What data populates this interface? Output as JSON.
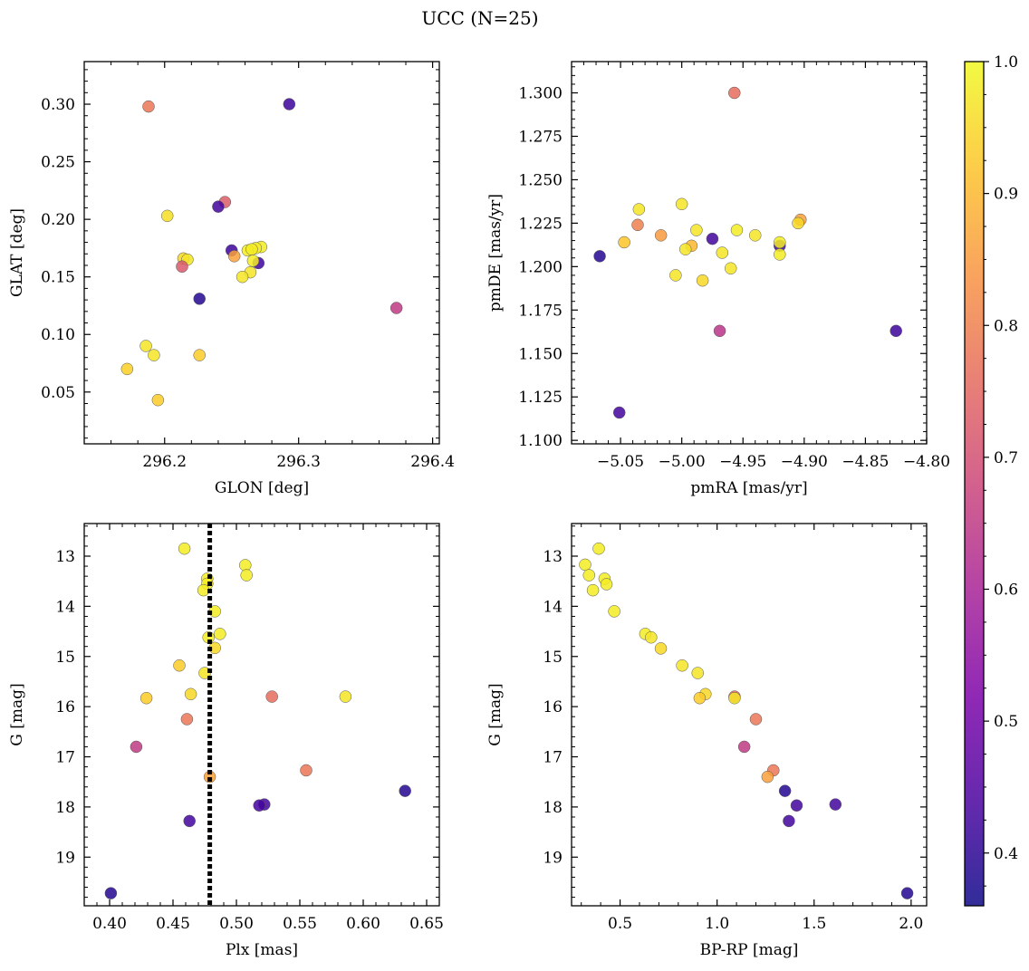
{
  "figure": {
    "title": "UCC (N=25)"
  },
  "colorbar": {
    "ticks": [
      "0.4",
      "0.5",
      "0.6",
      "0.7",
      "0.8",
      "0.9",
      "1.0"
    ],
    "range": [
      0.36,
      1.0
    ]
  },
  "chart_data": [
    {
      "type": "scatter",
      "panel": "top-left",
      "xlabel": "GLON [deg]",
      "ylabel": "GLAT [deg]",
      "xlim": [
        296.14,
        296.405
      ],
      "ylim": [
        0.005,
        0.337
      ],
      "xticks": [
        "296.2",
        "296.3",
        "296.4"
      ],
      "yticks": [
        "0.05",
        "0.10",
        "0.15",
        "0.20",
        "0.25",
        "0.30"
      ],
      "points": [
        {
          "x": 296.188,
          "y": 0.298,
          "c": 0.78
        },
        {
          "x": 296.293,
          "y": 0.3,
          "c": 0.42
        },
        {
          "x": 296.245,
          "y": 0.215,
          "c": 0.73
        },
        {
          "x": 296.24,
          "y": 0.211,
          "c": 0.43
        },
        {
          "x": 296.202,
          "y": 0.203,
          "c": 0.96
        },
        {
          "x": 296.272,
          "y": 0.176,
          "c": 0.98
        },
        {
          "x": 296.268,
          "y": 0.175,
          "c": 0.98
        },
        {
          "x": 296.262,
          "y": 0.173,
          "c": 0.98
        },
        {
          "x": 296.265,
          "y": 0.174,
          "c": 0.98
        },
        {
          "x": 296.25,
          "y": 0.173,
          "c": 0.42
        },
        {
          "x": 296.252,
          "y": 0.168,
          "c": 0.86
        },
        {
          "x": 296.214,
          "y": 0.166,
          "c": 0.95
        },
        {
          "x": 296.217,
          "y": 0.165,
          "c": 0.97
        },
        {
          "x": 296.27,
          "y": 0.162,
          "c": 0.42
        },
        {
          "x": 296.266,
          "y": 0.164,
          "c": 0.98
        },
        {
          "x": 296.213,
          "y": 0.159,
          "c": 0.72
        },
        {
          "x": 296.264,
          "y": 0.154,
          "c": 0.97
        },
        {
          "x": 296.258,
          "y": 0.15,
          "c": 0.97
        },
        {
          "x": 296.226,
          "y": 0.131,
          "c": 0.39
        },
        {
          "x": 296.373,
          "y": 0.123,
          "c": 0.65
        },
        {
          "x": 296.186,
          "y": 0.09,
          "c": 0.97
        },
        {
          "x": 296.192,
          "y": 0.082,
          "c": 0.97
        },
        {
          "x": 296.226,
          "y": 0.082,
          "c": 0.93
        },
        {
          "x": 296.172,
          "y": 0.07,
          "c": 0.94
        },
        {
          "x": 296.195,
          "y": 0.043,
          "c": 0.93
        }
      ]
    },
    {
      "type": "scatter",
      "panel": "top-right",
      "xlabel": "pmRA [mas/yr]",
      "ylabel": "pmDE [mas/yr]",
      "xlim": [
        -5.09,
        -4.8
      ],
      "ylim": [
        1.098,
        1.318
      ],
      "xticks": [
        "−5.05",
        "−5.00",
        "−4.95",
        "−4.90",
        "−4.85",
        "−4.80"
      ],
      "yticks": [
        "1.100",
        "1.125",
        "1.150",
        "1.175",
        "1.200",
        "1.225",
        "1.250",
        "1.275",
        "1.300"
      ],
      "points": [
        {
          "x": -4.957,
          "y": 1.3,
          "c": 0.76
        },
        {
          "x": -5.0,
          "y": 1.236,
          "c": 0.97
        },
        {
          "x": -5.035,
          "y": 1.233,
          "c": 0.97
        },
        {
          "x": -4.903,
          "y": 1.227,
          "c": 0.86
        },
        {
          "x": -4.905,
          "y": 1.225,
          "c": 0.95
        },
        {
          "x": -5.036,
          "y": 1.224,
          "c": 0.8
        },
        {
          "x": -4.988,
          "y": 1.221,
          "c": 0.97
        },
        {
          "x": -4.955,
          "y": 1.221,
          "c": 0.98
        },
        {
          "x": -5.017,
          "y": 1.218,
          "c": 0.85
        },
        {
          "x": -4.94,
          "y": 1.218,
          "c": 0.97
        },
        {
          "x": -4.975,
          "y": 1.216,
          "c": 0.43
        },
        {
          "x": -4.92,
          "y": 1.212,
          "c": 0.42
        },
        {
          "x": -4.92,
          "y": 1.214,
          "c": 0.98
        },
        {
          "x": -5.047,
          "y": 1.214,
          "c": 0.92
        },
        {
          "x": -4.992,
          "y": 1.212,
          "c": 0.9
        },
        {
          "x": -4.997,
          "y": 1.21,
          "c": 0.97
        },
        {
          "x": -4.967,
          "y": 1.208,
          "c": 0.97
        },
        {
          "x": -4.92,
          "y": 1.207,
          "c": 0.98
        },
        {
          "x": -5.067,
          "y": 1.206,
          "c": 0.39
        },
        {
          "x": -4.96,
          "y": 1.199,
          "c": 0.97
        },
        {
          "x": -5.005,
          "y": 1.195,
          "c": 0.97
        },
        {
          "x": -4.983,
          "y": 1.192,
          "c": 0.95
        },
        {
          "x": -4.969,
          "y": 1.163,
          "c": 0.64
        },
        {
          "x": -4.825,
          "y": 1.163,
          "c": 0.42
        },
        {
          "x": -5.051,
          "y": 1.116,
          "c": 0.43
        }
      ]
    },
    {
      "type": "scatter",
      "panel": "bottom-left",
      "xlabel": "Plx [mas]",
      "ylabel": "G [mag]",
      "xlim": [
        0.38,
        0.66
      ],
      "ylim": [
        19.97,
        12.35
      ],
      "invert_y": true,
      "xticks": [
        "0.40",
        "0.45",
        "0.50",
        "0.55",
        "0.60",
        "0.65"
      ],
      "yticks": [
        "13",
        "14",
        "15",
        "16",
        "17",
        "18",
        "19"
      ],
      "vline": {
        "x": 0.479,
        "style": "dotted"
      },
      "points": [
        {
          "x": 0.459,
          "y": 12.85,
          "c": 0.98
        },
        {
          "x": 0.507,
          "y": 13.18,
          "c": 0.98
        },
        {
          "x": 0.508,
          "y": 13.38,
          "c": 0.98
        },
        {
          "x": 0.477,
          "y": 13.45,
          "c": 0.98
        },
        {
          "x": 0.477,
          "y": 13.55,
          "c": 0.98
        },
        {
          "x": 0.474,
          "y": 13.68,
          "c": 0.98
        },
        {
          "x": 0.483,
          "y": 14.1,
          "c": 0.98
        },
        {
          "x": 0.487,
          "y": 14.55,
          "c": 0.98
        },
        {
          "x": 0.478,
          "y": 14.62,
          "c": 0.98
        },
        {
          "x": 0.483,
          "y": 14.83,
          "c": 0.95
        },
        {
          "x": 0.455,
          "y": 15.18,
          "c": 0.93
        },
        {
          "x": 0.475,
          "y": 15.33,
          "c": 0.97
        },
        {
          "x": 0.464,
          "y": 15.75,
          "c": 0.95
        },
        {
          "x": 0.586,
          "y": 15.8,
          "c": 0.97
        },
        {
          "x": 0.429,
          "y": 15.83,
          "c": 0.93
        },
        {
          "x": 0.528,
          "y": 15.8,
          "c": 0.76
        },
        {
          "x": 0.461,
          "y": 16.25,
          "c": 0.78
        },
        {
          "x": 0.421,
          "y": 16.8,
          "c": 0.65
        },
        {
          "x": 0.555,
          "y": 17.27,
          "c": 0.78
        },
        {
          "x": 0.479,
          "y": 17.4,
          "c": 0.86
        },
        {
          "x": 0.633,
          "y": 17.68,
          "c": 0.39
        },
        {
          "x": 0.522,
          "y": 17.95,
          "c": 0.43
        },
        {
          "x": 0.518,
          "y": 17.97,
          "c": 0.43
        },
        {
          "x": 0.463,
          "y": 18.28,
          "c": 0.43
        },
        {
          "x": 0.401,
          "y": 19.72,
          "c": 0.39
        }
      ]
    },
    {
      "type": "scatter",
      "panel": "bottom-right",
      "xlabel": "BP-RP [mag]",
      "ylabel": "G [mag]",
      "xlim": [
        0.25,
        2.08
      ],
      "ylim": [
        19.97,
        12.35
      ],
      "invert_y": true,
      "xticks": [
        "0.5",
        "1.0",
        "1.5",
        "2.0"
      ],
      "yticks": [
        "13",
        "14",
        "15",
        "16",
        "17",
        "18",
        "19"
      ],
      "points": [
        {
          "x": 0.39,
          "y": 12.85,
          "c": 0.98
        },
        {
          "x": 0.32,
          "y": 13.17,
          "c": 0.98
        },
        {
          "x": 0.34,
          "y": 13.38,
          "c": 0.98
        },
        {
          "x": 0.42,
          "y": 13.45,
          "c": 0.98
        },
        {
          "x": 0.43,
          "y": 13.56,
          "c": 0.98
        },
        {
          "x": 0.36,
          "y": 13.68,
          "c": 0.98
        },
        {
          "x": 0.47,
          "y": 14.1,
          "c": 0.98
        },
        {
          "x": 0.63,
          "y": 14.55,
          "c": 0.98
        },
        {
          "x": 0.66,
          "y": 14.62,
          "c": 0.97
        },
        {
          "x": 0.71,
          "y": 14.84,
          "c": 0.95
        },
        {
          "x": 0.82,
          "y": 15.18,
          "c": 0.97
        },
        {
          "x": 0.9,
          "y": 15.33,
          "c": 0.97
        },
        {
          "x": 0.94,
          "y": 15.75,
          "c": 0.95
        },
        {
          "x": 0.91,
          "y": 15.83,
          "c": 0.93
        },
        {
          "x": 1.09,
          "y": 15.8,
          "c": 0.76
        },
        {
          "x": 1.09,
          "y": 15.83,
          "c": 0.97
        },
        {
          "x": 1.2,
          "y": 16.25,
          "c": 0.78
        },
        {
          "x": 1.14,
          "y": 16.8,
          "c": 0.65
        },
        {
          "x": 1.29,
          "y": 17.27,
          "c": 0.78
        },
        {
          "x": 1.26,
          "y": 17.4,
          "c": 0.86
        },
        {
          "x": 1.35,
          "y": 17.68,
          "c": 0.39
        },
        {
          "x": 1.61,
          "y": 17.95,
          "c": 0.43
        },
        {
          "x": 1.41,
          "y": 17.97,
          "c": 0.43
        },
        {
          "x": 1.37,
          "y": 18.28,
          "c": 0.43
        },
        {
          "x": 1.98,
          "y": 19.72,
          "c": 0.39
        }
      ]
    }
  ]
}
